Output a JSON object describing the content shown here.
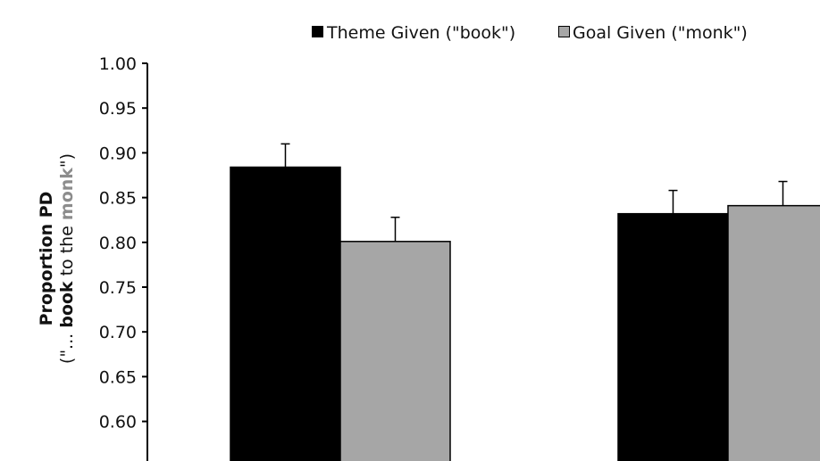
{
  "chart_data": {
    "type": "bar",
    "title": "",
    "categories": [
      "",
      ""
    ],
    "series": [
      {
        "name": "Theme Given (\"book\")",
        "color": "#000000",
        "values": [
          0.884,
          0.832
        ],
        "errors": [
          0.026,
          0.026
        ]
      },
      {
        "name": "Goal Given (\"monk\")",
        "color": "#a6a6a6",
        "values": [
          0.801,
          0.841
        ],
        "errors": [
          0.027,
          0.027
        ]
      }
    ],
    "ylabel": {
      "line1": "Proportion PD",
      "line2_prefix": "(\"... ",
      "line2_book": "book",
      "line2_middle": " to the ",
      "line2_monk": "monk",
      "line2_suffix": "\")"
    },
    "yticks": [
      "1.00",
      "0.95",
      "0.90",
      "0.85",
      "0.80",
      "0.75",
      "0.70",
      "0.65",
      "0.60"
    ],
    "ylim": [
      0.55,
      1.0
    ],
    "grid": false,
    "legend_position": "top-right"
  }
}
